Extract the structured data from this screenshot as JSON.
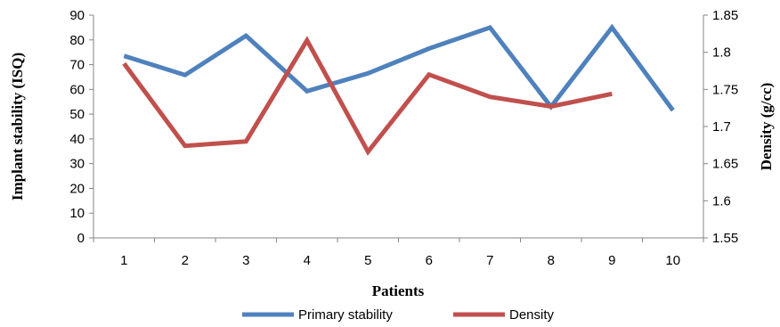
{
  "chart_data": {
    "type": "line",
    "title": "",
    "xlabel": "Patients",
    "ylabel_left": "Implant stability (ISQ)",
    "ylabel_right": "Density (g/cc)",
    "categories": [
      "1",
      "2",
      "3",
      "4",
      "5",
      "6",
      "7",
      "8",
      "9",
      "10"
    ],
    "ylim_left": [
      0,
      90
    ],
    "yticks_left": [
      "0",
      "10",
      "20",
      "30",
      "40",
      "50",
      "60",
      "70",
      "80",
      "90"
    ],
    "ylim_right": [
      1.55,
      1.85
    ],
    "yticks_right": [
      "1.55",
      "1.6",
      "1.65",
      "1.7",
      "1.75",
      "1.8",
      "1.85"
    ],
    "grid": false,
    "legend_position": "bottom",
    "series": [
      {
        "name": "Primary stability",
        "axis": "left",
        "color": "#4F81BD",
        "values": [
          73.5,
          65.8,
          81.7,
          59.3,
          66.5,
          76.5,
          85,
          53,
          85,
          51.5
        ]
      },
      {
        "name": "Density",
        "axis": "right",
        "color": "#C0504D",
        "values": [
          1.785,
          1.674,
          1.68,
          1.816,
          1.666,
          1.77,
          1.74,
          1.727,
          1.744,
          null
        ]
      }
    ]
  }
}
